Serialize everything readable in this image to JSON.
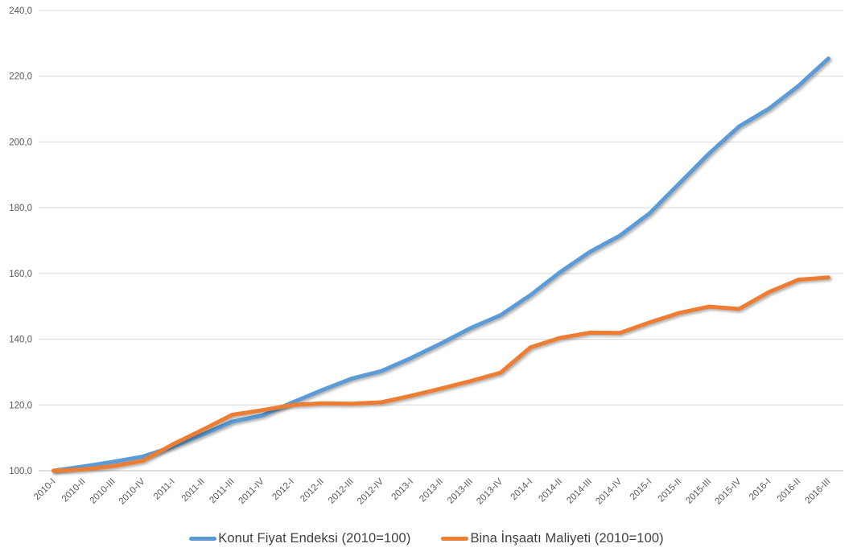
{
  "chart_data": {
    "type": "line",
    "title": "",
    "xlabel": "",
    "ylabel": "",
    "grid": true,
    "legend_position": "bottom",
    "categories": [
      "2010-I",
      "2010-II",
      "2010-III",
      "2010-IV",
      "2011-I",
      "2011-II",
      "2011-III",
      "2011-IV",
      "2012-I",
      "2012-II",
      "2012-III",
      "2012-IV",
      "2013-I",
      "2013-II",
      "2013-III",
      "2013-IV",
      "2014-I",
      "2014-II",
      "2014-III",
      "2014-IV",
      "2015-I",
      "2015-II",
      "2015-III",
      "2015-IV",
      "2016-I",
      "2016-II",
      "2016-III"
    ],
    "series": [
      {
        "name": "Konut Fiyat Endeksi (2010=100)",
        "color": "#5B9BD5",
        "values": [
          100.0,
          101.3,
          102.7,
          104.3,
          107.3,
          111.0,
          114.9,
          116.8,
          120.7,
          124.5,
          128.0,
          130.3,
          134.3,
          138.7,
          143.4,
          147.3,
          153.4,
          160.4,
          166.6,
          171.5,
          178.3,
          187.4,
          196.5,
          204.7,
          210.1,
          217.1,
          225.4
        ]
      },
      {
        "name": "Bina İnşaatı Maliyeti (2010=100)",
        "color": "#ED7D31",
        "values": [
          100.0,
          100.4,
          101.4,
          103.0,
          108.0,
          112.4,
          117.0,
          118.4,
          120.0,
          120.5,
          120.4,
          120.8,
          122.8,
          125.0,
          127.3,
          129.8,
          137.5,
          140.4,
          142.0,
          141.9,
          145.1,
          148.0,
          149.9,
          149.2,
          154.3,
          158.1,
          158.8
        ]
      }
    ],
    "ylim": [
      100,
      240
    ],
    "ytick_step": 20,
    "ytick_labels": [
      "100,0",
      "120,0",
      "140,0",
      "160,0",
      "180,0",
      "200,0",
      "220,0",
      "240,0"
    ],
    "axis": {
      "tick_color": "#595959",
      "grid_color": "#D9D9D9",
      "axis_line_color": "#BFBFBF",
      "legend_text_color": "#404040",
      "tick_font_size": 11.5
    }
  }
}
